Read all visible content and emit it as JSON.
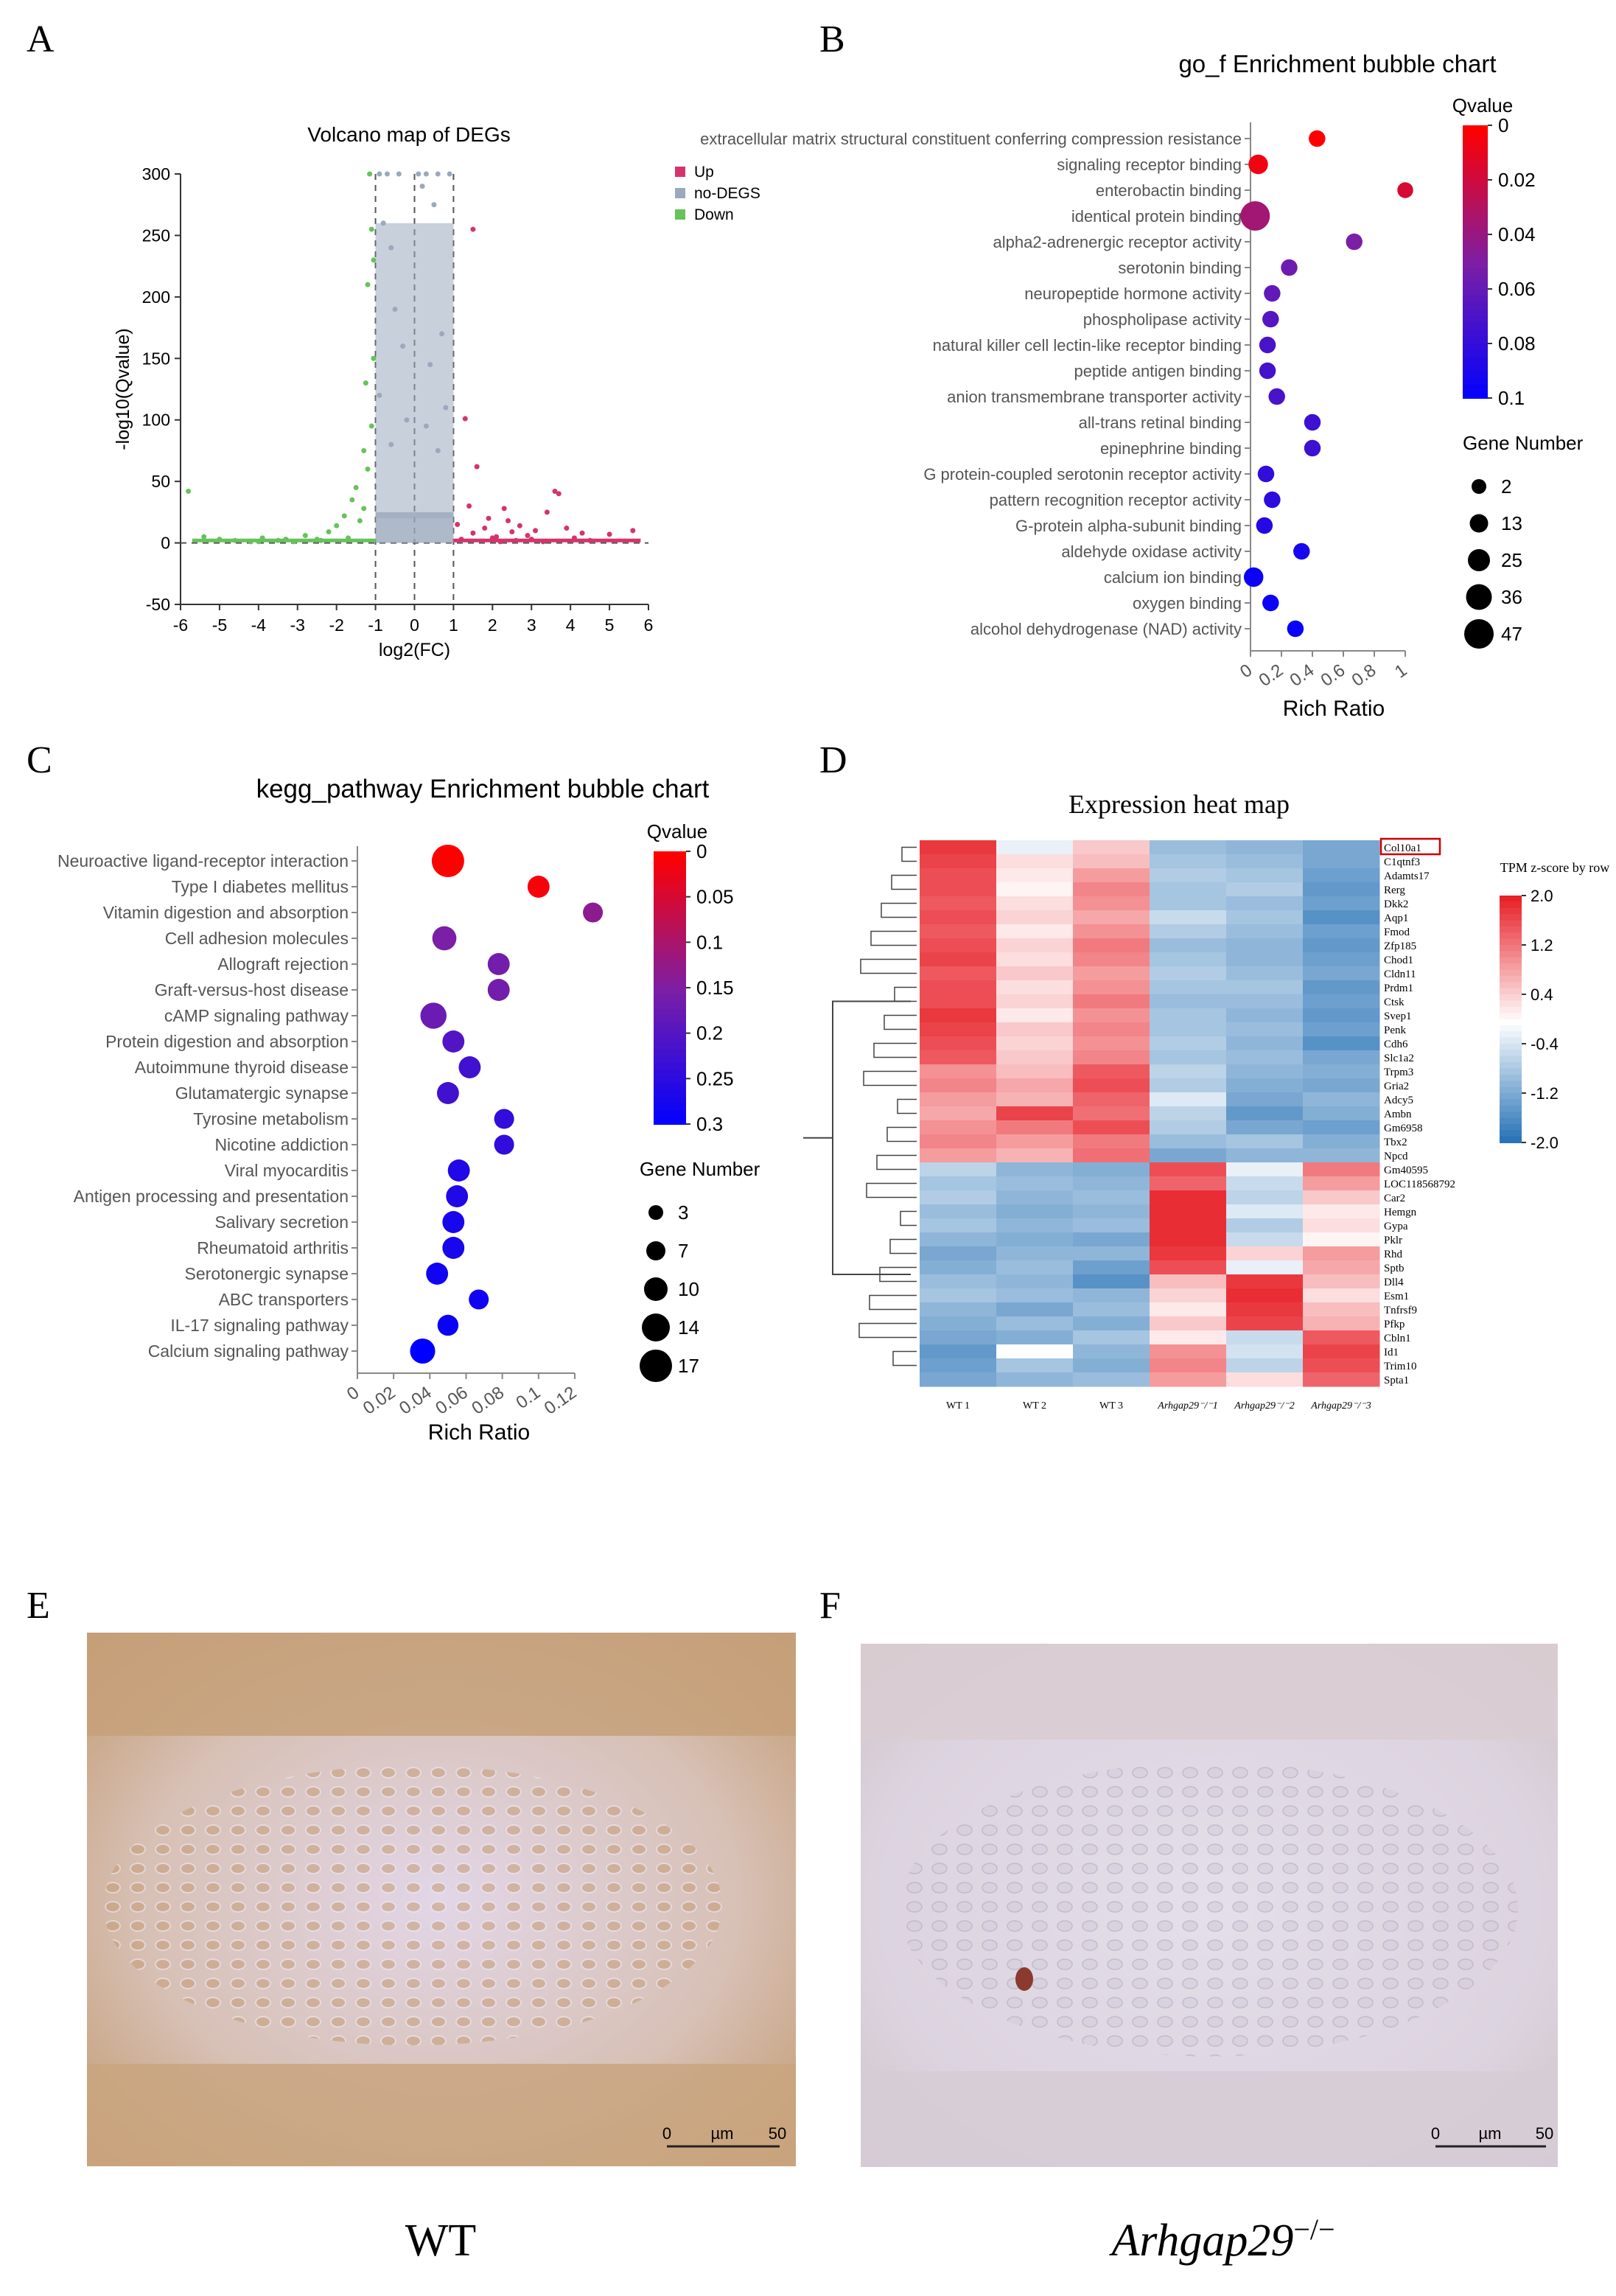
{
  "panel_letters": [
    "A",
    "B",
    "C",
    "D",
    "E",
    "F"
  ],
  "image_captions": {
    "e": "WT",
    "f_gene": "Arhgap29",
    "f_sup": "−/−"
  },
  "scale_bar": {
    "start": "0",
    "unit": "µm",
    "end": "50"
  },
  "colors": {
    "up": "#d6336c",
    "nodeg": "#9aa9bd",
    "down": "#66c35a",
    "q_low": "#ff0000",
    "q_mid": "#7a1fa6",
    "q_high": "#0000ff",
    "heat_low": "#1f6db3",
    "heat_mid": "#ffffff",
    "heat_high": "#e8222a",
    "ihc_wt": "#c7a27a",
    "ihc_ko": "#cfc6d6"
  },
  "chart_data": [
    {
      "id": "A",
      "type": "scatter",
      "title": "Volcano map of DEGs",
      "xlabel": "log2(FC)",
      "ylabel": "-log10(Qvalue)",
      "xlim": [
        -6,
        6
      ],
      "ylim": [
        -50,
        300
      ],
      "xticks": [
        "-6",
        "-5",
        "-4",
        "-3",
        "-2",
        "-1",
        "0",
        "1",
        "2",
        "3",
        "4",
        "5",
        "6"
      ],
      "yticks": [
        "300",
        "250",
        "200",
        "150",
        "100",
        "50",
        "0",
        "-50"
      ],
      "thresholds": {
        "fc": [
          -1,
          0,
          1
        ],
        "q": 0
      },
      "legend": [
        "Up",
        "no-DEGS",
        "Down"
      ],
      "series": [
        {
          "name": "Up",
          "points": [
            [
              1.2,
              3
            ],
            [
              1.5,
              8
            ],
            [
              1.8,
              12
            ],
            [
              2.1,
              5
            ],
            [
              2.4,
              18
            ],
            [
              2.6,
              2
            ],
            [
              2.9,
              6
            ],
            [
              3.1,
              10
            ],
            [
              3.4,
              25
            ],
            [
              3.6,
              42
            ],
            [
              3.7,
              40
            ],
            [
              4.1,
              4
            ],
            [
              4.5,
              2
            ],
            [
              5.0,
              7
            ],
            [
              5.6,
              10
            ],
            [
              1.4,
              30
            ],
            [
              1.3,
              101
            ],
            [
              1.6,
              62
            ],
            [
              1.5,
              255
            ],
            [
              2.2,
              1
            ],
            [
              2.7,
              14
            ],
            [
              3.0,
              3
            ],
            [
              3.3,
              1
            ],
            [
              3.9,
              12
            ],
            [
              4.3,
              8
            ],
            [
              1.9,
              20
            ],
            [
              2.3,
              28
            ],
            [
              1.1,
              15
            ],
            [
              2.0,
              4
            ],
            [
              2.5,
              9
            ]
          ]
        },
        {
          "name": "Down",
          "points": [
            [
              -5.8,
              42
            ],
            [
              -5.4,
              5
            ],
            [
              -5.0,
              3
            ],
            [
              -4.6,
              2
            ],
            [
              -4.2,
              1
            ],
            [
              -3.9,
              4
            ],
            [
              -3.5,
              2
            ],
            [
              -3.1,
              1
            ],
            [
              -2.8,
              6
            ],
            [
              -2.5,
              3
            ],
            [
              -2.2,
              9
            ],
            [
              -2.0,
              14
            ],
            [
              -1.8,
              22
            ],
            [
              -1.6,
              35
            ],
            [
              -1.5,
              45
            ],
            [
              -1.3,
              28
            ],
            [
              -1.2,
              60
            ],
            [
              -1.1,
              95
            ],
            [
              -1.05,
              150
            ],
            [
              -1.2,
              210
            ],
            [
              -1.1,
              255
            ],
            [
              -1.15,
              300
            ],
            [
              -1.4,
              18
            ],
            [
              -1.7,
              4
            ],
            [
              -2.4,
              2
            ],
            [
              -3.3,
              3
            ],
            [
              -4.0,
              1
            ],
            [
              -1.25,
              130
            ],
            [
              -1.05,
              230
            ],
            [
              -1.3,
              75
            ]
          ]
        },
        {
          "name": "no-DEGS",
          "points": [
            [
              -0.9,
              300
            ],
            [
              -0.7,
              300
            ],
            [
              -0.4,
              300
            ],
            [
              0.1,
              300
            ],
            [
              0.3,
              300
            ],
            [
              0.6,
              300
            ],
            [
              0.9,
              300
            ],
            [
              -0.8,
              260
            ],
            [
              -0.6,
              240
            ],
            [
              0.2,
              290
            ],
            [
              0.5,
              275
            ],
            [
              -0.5,
              190
            ],
            [
              0.7,
              170
            ],
            [
              -0.3,
              160
            ],
            [
              0.4,
              145
            ],
            [
              -0.9,
              120
            ],
            [
              0.8,
              110
            ],
            [
              -0.2,
              100
            ],
            [
              0.3,
              95
            ],
            [
              -0.6,
              80
            ],
            [
              0.6,
              75
            ]
          ]
        }
      ]
    },
    {
      "id": "B",
      "type": "scatter",
      "title": "go_f Enrichment bubble chart",
      "xlabel": "Rich Ratio",
      "xlim": [
        0,
        1
      ],
      "xticks": [
        "0",
        "0.2",
        "0.4",
        "0.6",
        "0.8",
        "1"
      ],
      "colorbar": {
        "title": "Qvalue",
        "ticks": [
          "0",
          "0.02",
          "0.04",
          "0.06",
          "0.08",
          "0.1"
        ],
        "range": [
          0,
          0.1
        ]
      },
      "size_legend": {
        "title": "Gene Number",
        "values": [
          "2",
          "13",
          "25",
          "36",
          "47"
        ]
      },
      "categories": [
        "extracellular matrix structural constituent conferring compression resistance",
        "signaling receptor binding",
        "enterobactin binding",
        "identical protein binding",
        "alpha2-adrenergic receptor activity",
        "serotonin binding",
        "neuropeptide hormone activity",
        "phospholipase activity",
        "natural killer cell lectin-like receptor binding",
        "peptide antigen binding",
        "anion transmembrane transporter activity",
        "all-trans retinal binding",
        "epinephrine binding",
        "G protein-coupled serotonin receptor activity",
        "pattern recognition receptor activity",
        "G-protein alpha-subunit binding",
        "aldehyde oxidase activity",
        "calcium ion binding",
        "oxygen binding",
        "alcohol dehydrogenase (NAD) activity"
      ],
      "rich_ratio": [
        0.43,
        0.05,
        1.0,
        0.03,
        0.67,
        0.25,
        0.14,
        0.13,
        0.11,
        0.11,
        0.17,
        0.4,
        0.4,
        0.1,
        0.14,
        0.09,
        0.33,
        0.02,
        0.13,
        0.29
      ],
      "qvalue": [
        0.0,
        0.005,
        0.015,
        0.035,
        0.05,
        0.055,
        0.06,
        0.065,
        0.07,
        0.072,
        0.07,
        0.075,
        0.075,
        0.08,
        0.082,
        0.085,
        0.09,
        0.095,
        0.095,
        0.097
      ],
      "gene_number": [
        5,
        13,
        3,
        40,
        5,
        5,
        5,
        5,
        5,
        5,
        5,
        5,
        5,
        5,
        5,
        5,
        5,
        13,
        5,
        5
      ]
    },
    {
      "id": "C",
      "type": "scatter",
      "title": "kegg_pathway Enrichment bubble chart",
      "xlabel": "Rich Ratio",
      "xlim": [
        0,
        0.12
      ],
      "xticks": [
        "0",
        "0.02",
        "0.04",
        "0.06",
        "0.08",
        "0.1",
        "0.12"
      ],
      "colorbar": {
        "title": "Qvalue",
        "ticks": [
          "0",
          "0.05",
          "0.1",
          "0.15",
          "0.2",
          "0.25",
          "0.3"
        ],
        "range": [
          0,
          0.3
        ]
      },
      "size_legend": {
        "title": "Gene Number",
        "values": [
          "3",
          "7",
          "10",
          "14",
          "17"
        ]
      },
      "categories": [
        "Neuroactive ligand-receptor interaction",
        "Type I diabetes mellitus",
        "Vitamin digestion and absorption",
        "Cell adhesion molecules",
        "Allograft rejection",
        "Graft-versus-host disease",
        "cAMP signaling pathway",
        "Protein digestion and absorption",
        "Autoimmune thyroid disease",
        "Glutamatergic synapse",
        "Tyrosine metabolism",
        "Nicotine addiction",
        "Viral myocarditis",
        "Antigen processing and presentation",
        "Salivary secretion",
        "Rheumatoid arthritis",
        "Serotonergic synapse",
        "ABC transporters",
        "IL-17 signaling pathway",
        "Calcium signaling pathway"
      ],
      "rich_ratio": [
        0.05,
        0.1,
        0.13,
        0.048,
        0.078,
        0.078,
        0.042,
        0.053,
        0.062,
        0.05,
        0.081,
        0.081,
        0.056,
        0.055,
        0.053,
        0.053,
        0.044,
        0.067,
        0.05,
        0.036
      ],
      "qvalue": [
        0.0,
        0.01,
        0.13,
        0.15,
        0.16,
        0.16,
        0.17,
        0.2,
        0.22,
        0.22,
        0.24,
        0.24,
        0.26,
        0.26,
        0.27,
        0.27,
        0.28,
        0.28,
        0.29,
        0.3
      ],
      "gene_number": [
        17,
        7,
        5,
        9,
        7,
        7,
        11,
        7,
        7,
        7,
        5,
        5,
        7,
        7,
        7,
        7,
        7,
        5,
        6,
        10
      ]
    },
    {
      "id": "D",
      "type": "heatmap",
      "title": "Expression heat map",
      "colorbar": {
        "title": "TPM z-score by row",
        "ticks": [
          "2.0",
          "1.2",
          "0.4",
          "-0.4",
          "-1.2",
          "-2.0"
        ],
        "range": [
          -2,
          2
        ]
      },
      "highlight": "Col10a1",
      "columns": [
        "WT 1",
        "WT 2",
        "WT 3",
        "Arhgap29⁻/⁻1",
        "Arhgap29⁻/⁻2",
        "Arhgap29⁻/⁻3"
      ],
      "rows": [
        "Col10a1",
        "C1qtnf3",
        "Adamts17",
        "Rerg",
        "Dkk2",
        "Aqp1",
        "Fmod",
        "Zfp185",
        "Chod1",
        "Cldn11",
        "Prdm1",
        "Ctsk",
        "Svep1",
        "Penk",
        "Cdh6",
        "Slc1a2",
        "Trpm3",
        "Gria2",
        "Adcy5",
        "Ambn",
        "Gm6958",
        "Tbx2",
        "Npcd",
        "Gm40595",
        "LOC118568792",
        "Car2",
        "Hemgn",
        "Gypa",
        "Pklr",
        "Rhd",
        "Sptb",
        "Dll4",
        "Esm1",
        "Tnfrsf9",
        "Pfkp",
        "Cbln1",
        "Id1",
        "Trim10",
        "Spta1"
      ],
      "values": [
        [
          1.8,
          -0.2,
          0.5,
          -0.9,
          -1.0,
          -1.2
        ],
        [
          1.7,
          0.3,
          0.6,
          -0.8,
          -0.9,
          -1.2
        ],
        [
          1.6,
          0.2,
          0.9,
          -0.7,
          -0.8,
          -1.3
        ],
        [
          1.6,
          0.1,
          1.1,
          -0.8,
          -0.7,
          -1.4
        ],
        [
          1.5,
          0.3,
          1.0,
          -0.8,
          -0.9,
          -1.3
        ],
        [
          1.6,
          0.4,
          0.8,
          -0.5,
          -0.8,
          -1.5
        ],
        [
          1.5,
          0.2,
          1.0,
          -0.7,
          -0.9,
          -1.3
        ],
        [
          1.6,
          0.4,
          1.2,
          -0.9,
          -1.0,
          -1.4
        ],
        [
          1.7,
          0.3,
          1.1,
          -0.8,
          -1.0,
          -1.3
        ],
        [
          1.5,
          0.5,
          0.9,
          -0.7,
          -0.9,
          -1.2
        ],
        [
          1.6,
          0.3,
          1.0,
          -0.8,
          -0.8,
          -1.4
        ],
        [
          1.6,
          0.4,
          1.2,
          -0.9,
          -0.9,
          -1.3
        ],
        [
          1.8,
          0.2,
          1.0,
          -0.8,
          -1.0,
          -1.4
        ],
        [
          1.7,
          0.5,
          1.1,
          -0.8,
          -0.9,
          -1.3
        ],
        [
          1.6,
          0.4,
          1.0,
          -0.7,
          -1.0,
          -1.5
        ],
        [
          1.5,
          0.5,
          1.1,
          -0.8,
          -0.9,
          -1.2
        ],
        [
          1.0,
          0.6,
          1.5,
          -0.6,
          -1.0,
          -1.1
        ],
        [
          1.1,
          0.8,
          1.6,
          -0.7,
          -1.1,
          -1.2
        ],
        [
          0.9,
          0.7,
          1.4,
          -0.3,
          -1.2,
          -1.0
        ],
        [
          0.8,
          1.7,
          1.3,
          -0.6,
          -1.4,
          -1.1
        ],
        [
          1.0,
          1.2,
          1.6,
          -0.7,
          -1.2,
          -1.3
        ],
        [
          1.1,
          0.9,
          1.2,
          -0.9,
          -0.8,
          -1.1
        ],
        [
          0.9,
          0.7,
          1.3,
          -1.2,
          -1.0,
          -1.0
        ],
        [
          -0.6,
          -1.0,
          -1.1,
          1.6,
          -0.2,
          1.2
        ],
        [
          -0.8,
          -0.9,
          -1.0,
          1.4,
          -0.5,
          0.9
        ],
        [
          -0.7,
          -1.0,
          -0.9,
          1.9,
          -0.6,
          0.5
        ],
        [
          -0.9,
          -1.1,
          -1.0,
          1.9,
          -0.3,
          0.2
        ],
        [
          -0.8,
          -1.0,
          -0.9,
          1.9,
          -0.7,
          0.3
        ],
        [
          -1.0,
          -1.1,
          -1.2,
          1.9,
          -0.5,
          0.1
        ],
        [
          -1.2,
          -1.0,
          -1.0,
          1.8,
          0.4,
          0.9
        ],
        [
          -1.1,
          -0.9,
          -1.3,
          1.6,
          -0.2,
          0.8
        ],
        [
          -0.9,
          -1.0,
          -1.5,
          0.6,
          1.8,
          0.6
        ],
        [
          -0.8,
          -0.9,
          -1.0,
          0.4,
          1.9,
          0.3
        ],
        [
          -1.0,
          -1.2,
          -0.9,
          0.2,
          1.8,
          0.6
        ],
        [
          -1.1,
          -0.9,
          -1.1,
          0.5,
          1.7,
          0.7
        ],
        [
          -1.2,
          -1.1,
          -0.8,
          0.2,
          -0.5,
          1.5
        ],
        [
          -1.4,
          0.0,
          -1.0,
          1.0,
          -0.4,
          1.7
        ],
        [
          -1.3,
          -0.8,
          -1.1,
          1.1,
          -0.6,
          1.6
        ],
        [
          -1.2,
          -1.0,
          -0.9,
          0.9,
          0.3,
          1.4
        ]
      ]
    }
  ]
}
